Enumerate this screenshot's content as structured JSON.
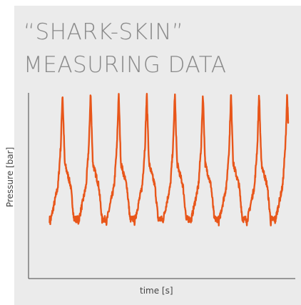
{
  "title": {
    "line1": "“SHARK-SKIN”",
    "line2": "MEASURING DATA"
  },
  "colors": {
    "background": "#ebebeb",
    "title": "#8a8a8a",
    "axis": "#444444",
    "series": "#e8561a"
  },
  "chart_data": {
    "type": "line",
    "title": "“SHARK-SKIN” MEASURING DATA",
    "xlabel": "time [s]",
    "ylabel": "Pressure [bar]",
    "ticks_shown": false,
    "grid": false,
    "xlim": [
      0,
      9.5
    ],
    "ylim": [
      0,
      1
    ],
    "series": [
      {
        "pattern": "periodic pressure pulses",
        "period": 1,
        "cycles": 8,
        "baseline": 0.5,
        "peak": 1,
        "trough": 0.3
      }
    ]
  }
}
